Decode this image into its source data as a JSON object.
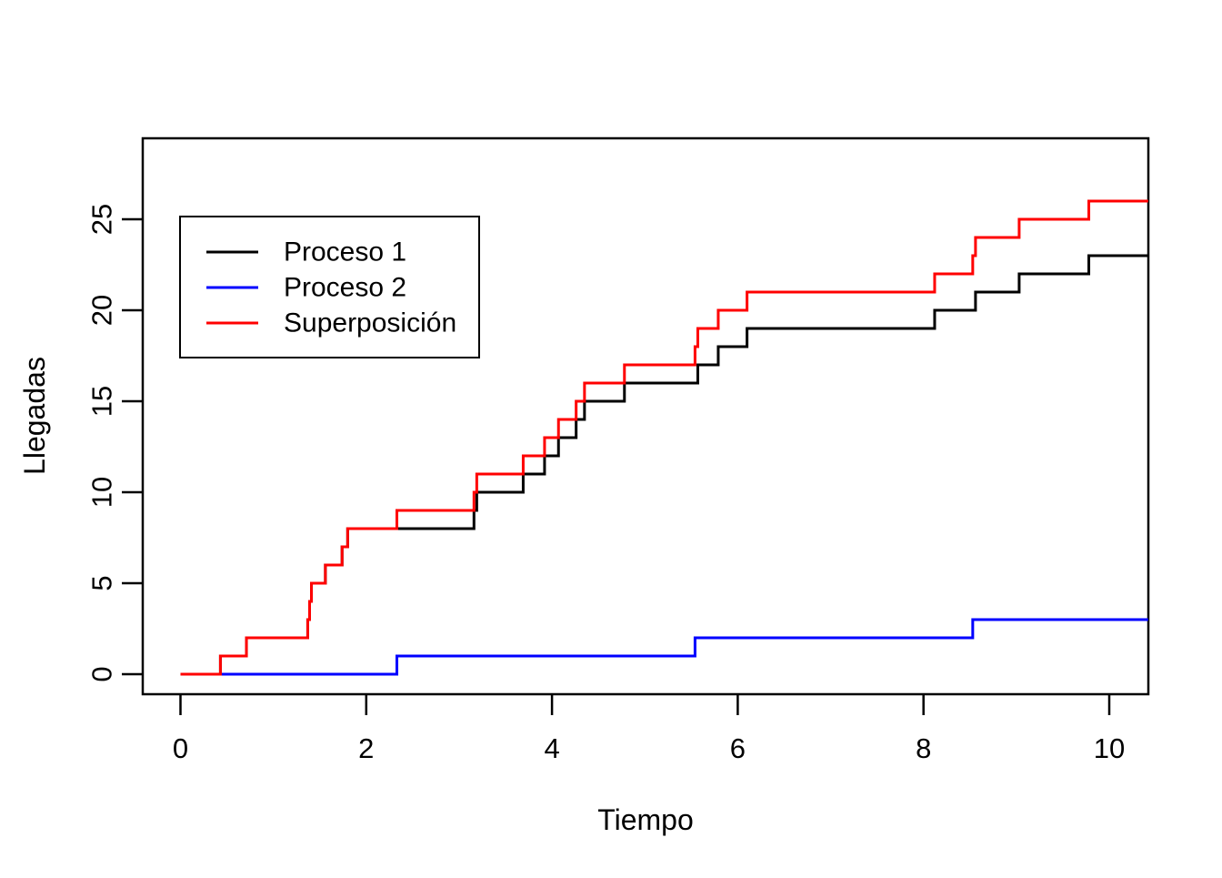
{
  "figure": {
    "background": "#FFFFFF",
    "border_color": "#000000"
  },
  "chart_data": {
    "type": "line",
    "subtype": "step-counting-process",
    "title": "",
    "xlabel": "Tiempo",
    "ylabel": "Llegadas",
    "xticks": [
      0,
      2,
      4,
      6,
      8,
      10
    ],
    "yticks": [
      0,
      5,
      10,
      15,
      20,
      25
    ],
    "xlim": [
      -0.41,
      10.42
    ],
    "ylim": [
      -1.1,
      29.45
    ],
    "x_end": 10.42,
    "grid": false,
    "legend": {
      "position": "top-left",
      "entries": [
        "Proceso 1",
        "Proceso 2",
        "Superposición"
      ]
    },
    "series": [
      {
        "name": "Proceso 1",
        "color": "#000000",
        "start_value": 0,
        "final_value": 23,
        "arrival_times": [
          0.43,
          0.71,
          1.37,
          1.39,
          1.41,
          1.56,
          1.74,
          1.8,
          3.16,
          3.19,
          3.69,
          3.92,
          4.07,
          4.26,
          4.35,
          4.78,
          5.57,
          5.79,
          6.1,
          8.12,
          8.56,
          9.03,
          9.78
        ]
      },
      {
        "name": "Proceso 2",
        "color": "#0000FF",
        "start_value": 0,
        "final_value": 3,
        "arrival_times": [
          2.33,
          5.54,
          8.53
        ]
      },
      {
        "name": "Superposición",
        "color": "#FF0000",
        "start_value": 0,
        "final_value": 26,
        "arrival_times": [
          0.43,
          0.71,
          1.37,
          1.39,
          1.41,
          1.56,
          1.74,
          1.8,
          2.33,
          3.16,
          3.19,
          3.69,
          3.92,
          4.07,
          4.26,
          4.35,
          4.78,
          5.54,
          5.57,
          5.79,
          6.1,
          8.12,
          8.53,
          8.56,
          9.03,
          9.78
        ]
      }
    ]
  }
}
